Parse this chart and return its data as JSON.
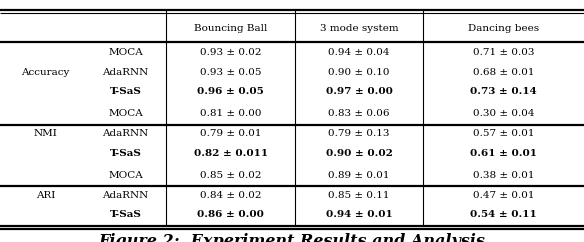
{
  "col_headers": [
    "Bouncing Ball",
    "3 mode system",
    "Dancing bees"
  ],
  "row_groups": [
    {
      "metric": "Accuracy",
      "rows": [
        {
          "method": "MOCA",
          "bb": "0.93 ± 0.02",
          "ms": "0.94 ± 0.04",
          "db": "0.71 ± 0.03",
          "bold": false
        },
        {
          "method": "AdaRNN",
          "bb": "0.93 ± 0.05",
          "ms": "0.90 ± 0.10",
          "db": "0.68 ± 0.01",
          "bold": false
        },
        {
          "method": "T-SaS",
          "bb": "0.96 ± 0.05",
          "ms": "0.97 ± 0.00",
          "db": "0.73 ± 0.14",
          "bold": true
        }
      ]
    },
    {
      "metric": "NMI",
      "rows": [
        {
          "method": "MOCA",
          "bb": "0.81 ± 0.00",
          "ms": "0.83 ± 0.06",
          "db": "0.30 ± 0.04",
          "bold": false
        },
        {
          "method": "AdaRNN",
          "bb": "0.79 ± 0.01",
          "ms": "0.79 ± 0.13",
          "db": "0.57 ± 0.01",
          "bold": false
        },
        {
          "method": "T-SaS",
          "bb": "0.82 ± 0.011",
          "ms": "0.90 ± 0.02",
          "db": "0.61 ± 0.01",
          "bold": true
        }
      ]
    },
    {
      "metric": "ARI",
      "rows": [
        {
          "method": "MOCA",
          "bb": "0.85 ± 0.02",
          "ms": "0.89 ± 0.01",
          "db": "0.38 ± 0.01",
          "bold": false
        },
        {
          "method": "AdaRNN",
          "bb": "0.84 ± 0.02",
          "ms": "0.85 ± 0.11",
          "db": "0.47 ± 0.01",
          "bold": false
        },
        {
          "method": "T-SaS",
          "bb": "0.86 ± 0.00",
          "ms": "0.94 ± 0.01",
          "db": "0.54 ± 0.11",
          "bold": true
        }
      ]
    }
  ],
  "bg_color": "#ffffff",
  "font_size": 7.5,
  "caption_font_size": 11.5
}
